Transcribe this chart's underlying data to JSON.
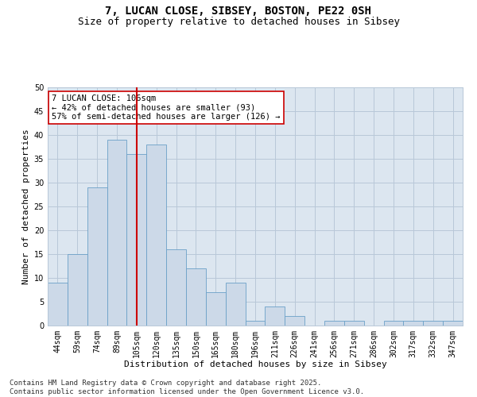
{
  "title1": "7, LUCAN CLOSE, SIBSEY, BOSTON, PE22 0SH",
  "title2": "Size of property relative to detached houses in Sibsey",
  "xlabel": "Distribution of detached houses by size in Sibsey",
  "ylabel": "Number of detached properties",
  "bar_labels": [
    "44sqm",
    "59sqm",
    "74sqm",
    "89sqm",
    "105sqm",
    "120sqm",
    "135sqm",
    "150sqm",
    "165sqm",
    "180sqm",
    "196sqm",
    "211sqm",
    "226sqm",
    "241sqm",
    "256sqm",
    "271sqm",
    "286sqm",
    "302sqm",
    "317sqm",
    "332sqm",
    "347sqm"
  ],
  "bar_values": [
    9,
    15,
    29,
    39,
    36,
    38,
    16,
    12,
    7,
    9,
    1,
    4,
    2,
    0,
    1,
    1,
    0,
    1,
    1,
    1,
    1
  ],
  "bar_color": "#ccd9e8",
  "bar_edgecolor": "#6aa0c8",
  "vline_x": 4.0,
  "vline_color": "#cc0000",
  "ylim": [
    0,
    50
  ],
  "yticks": [
    0,
    5,
    10,
    15,
    20,
    25,
    30,
    35,
    40,
    45,
    50
  ],
  "grid_color": "#b8c8d8",
  "background_color": "#dce6f0",
  "annotation_text": "7 LUCAN CLOSE: 106sqm\n← 42% of detached houses are smaller (93)\n57% of semi-detached houses are larger (126) →",
  "annotation_box_edgecolor": "#cc0000",
  "annotation_box_facecolor": "#ffffff",
  "footer_text": "Contains HM Land Registry data © Crown copyright and database right 2025.\nContains public sector information licensed under the Open Government Licence v3.0.",
  "title1_fontsize": 10,
  "title2_fontsize": 9,
  "xlabel_fontsize": 8,
  "ylabel_fontsize": 8,
  "tick_fontsize": 7,
  "annotation_fontsize": 7.5,
  "footer_fontsize": 6.5
}
